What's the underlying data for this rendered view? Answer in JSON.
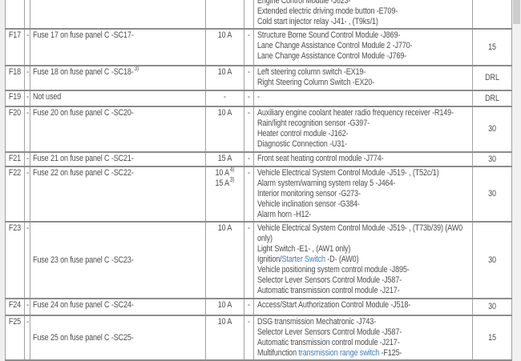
{
  "page": {
    "colors": {
      "link": "#3b7dc0",
      "text": "#4d4d4d",
      "row_border": "#8d8d8d",
      "column_border": "#a2a2a2",
      "gutter": "#efefef",
      "scroll_thumb": "#cccccc"
    }
  },
  "table": {
    "rows": [
      {
        "partial_top": true,
        "id": "",
        "dash1": "",
        "name": "",
        "amps": [],
        "dash2": "",
        "consumers": [
          [
            {
              "t": "Engine Control Module -J623-"
            }
          ],
          [
            {
              "t": "Extended electric driving mode button -E709-"
            }
          ],
          [
            {
              "t": "Cold start injector relay -J41- , (T9ks/1)"
            }
          ]
        ],
        "value": ""
      },
      {
        "id": "F17",
        "dash1": "-",
        "name": "Fuse 17 on fuse panel C -SC17-",
        "amps": [
          {
            "t": "10 A"
          }
        ],
        "dash2": "-",
        "consumers": [
          [
            {
              "t": "Structure Borne Sound Control Module -J869-"
            }
          ],
          [
            {
              "t": "Lane Change Assistance Control Module 2 -J770-"
            }
          ],
          [
            {
              "t": "Lane Change Assistance Control Module -J769-"
            }
          ]
        ],
        "value": "15"
      },
      {
        "id": "F18",
        "dash1": "-",
        "name": "Fuse 18 on fuse panel C -SC18-",
        "name_sup": "3)",
        "amps": [
          {
            "t": "10 A"
          }
        ],
        "dash2": "-",
        "consumers": [
          [
            {
              "t": "Left steering column switch -EX19-"
            }
          ],
          [
            {
              "t": "Right Steering Column Switch -EX20-"
            }
          ]
        ],
        "value": "DRL"
      },
      {
        "id": "F19",
        "dash1": "-",
        "name": "Not used",
        "amps": [
          {
            "t": "-"
          }
        ],
        "dash2": "-",
        "consumers": [
          [
            {
              "t": "-"
            }
          ]
        ],
        "value": "DRL"
      },
      {
        "id": "F20",
        "dash1": "-",
        "name": "Fuse 20 on fuse panel C -SC20-",
        "amps": [
          {
            "t": "10 A"
          }
        ],
        "dash2": "-",
        "consumers": [
          [
            {
              "t": "Auxiliary engine coolant heater radio frequency receiver -R149-"
            }
          ],
          [
            {
              "t": "Rain/light recognition sensor -G397-"
            }
          ],
          [
            {
              "t": "Heater control module -J162-"
            }
          ],
          [
            {
              "t": "Diagnostic Connection -U31-"
            }
          ]
        ],
        "value": "30"
      },
      {
        "id": "F21",
        "dash1": "-",
        "name": "Fuse 21 on fuse panel C -SC21-",
        "amps": [
          {
            "t": "15 A"
          }
        ],
        "dash2": "-",
        "consumers": [
          [
            {
              "t": "Front seat heating control module -J774-"
            }
          ]
        ],
        "value": "30"
      },
      {
        "id": "F22",
        "dash1": "-",
        "name": "Fuse 22 on fuse panel C -SC22-",
        "amps": [
          {
            "t": "10 A",
            "sup": "4)"
          },
          {
            "t": "15 A",
            "sup": "3)"
          }
        ],
        "dash2": "-",
        "consumers": [
          [
            {
              "t": "Vehicle Electrical System Control Module -J519- , (T52c/1)"
            }
          ],
          [
            {
              "t": "Alarm system/warning system relay 5 -J464-"
            }
          ],
          [
            {
              "t": "Interior monitoring sensor -G273-"
            }
          ],
          [
            {
              "t": "Vehicle inclination sensor -G384-"
            }
          ],
          [
            {
              "t": "Alarm horn -H12-"
            }
          ]
        ],
        "value": "30"
      },
      {
        "id": "F23",
        "dash1": "-",
        "name": "Fuse 23 on fuse panel C -SC23-",
        "name_centered": true,
        "amps": [
          {
            "t": "10 A"
          }
        ],
        "dash2": "-",
        "consumers": [
          [
            {
              "t": "Vehicle Electrical System Control Module -J519- , (T73b/39) (AW0"
            }
          ],
          [
            {
              "t": "only)"
            }
          ],
          [
            {
              "t": "Light Switch -E1- , (AW1 only)"
            }
          ],
          [
            {
              "t": "Ignition/"
            },
            {
              "t": "Starter Switch",
              "link": true
            },
            {
              "t": " -D- (AW0)"
            }
          ],
          [
            {
              "t": "Vehicle positioning system control module -J895-"
            }
          ],
          [
            {
              "t": "Selector Lever Sensors Control Module -J587-"
            }
          ],
          [
            {
              "t": "Automatic transmission control module -J217-"
            }
          ]
        ],
        "value": "30"
      },
      {
        "id": "F24",
        "dash1": "-",
        "name": "Fuse 24 on fuse panel C -SC24-",
        "amps": [
          {
            "t": "10 A"
          }
        ],
        "dash2": "-",
        "consumers": [
          [
            {
              "t": "Access/Start Authorization Control Module -J518-"
            }
          ]
        ],
        "value": "30"
      },
      {
        "id": "F25",
        "dash1": "-",
        "name": "Fuse 25 on fuse panel C -SC25-",
        "name_centered": true,
        "amps": [
          {
            "t": "10 A"
          }
        ],
        "dash2": "-",
        "consumers": [
          [
            {
              "t": "DSG transmission Mechatronic -J743-"
            }
          ],
          [
            {
              "t": "Selector Lever Sensors Control Module -J587-"
            }
          ],
          [
            {
              "t": "Automatic transmission control module -J217-"
            }
          ],
          [
            {
              "t": "Multifunction "
            },
            {
              "t": "transmission range switch",
              "link": true
            },
            {
              "t": " -F125-"
            }
          ]
        ],
        "value": "15"
      }
    ]
  }
}
